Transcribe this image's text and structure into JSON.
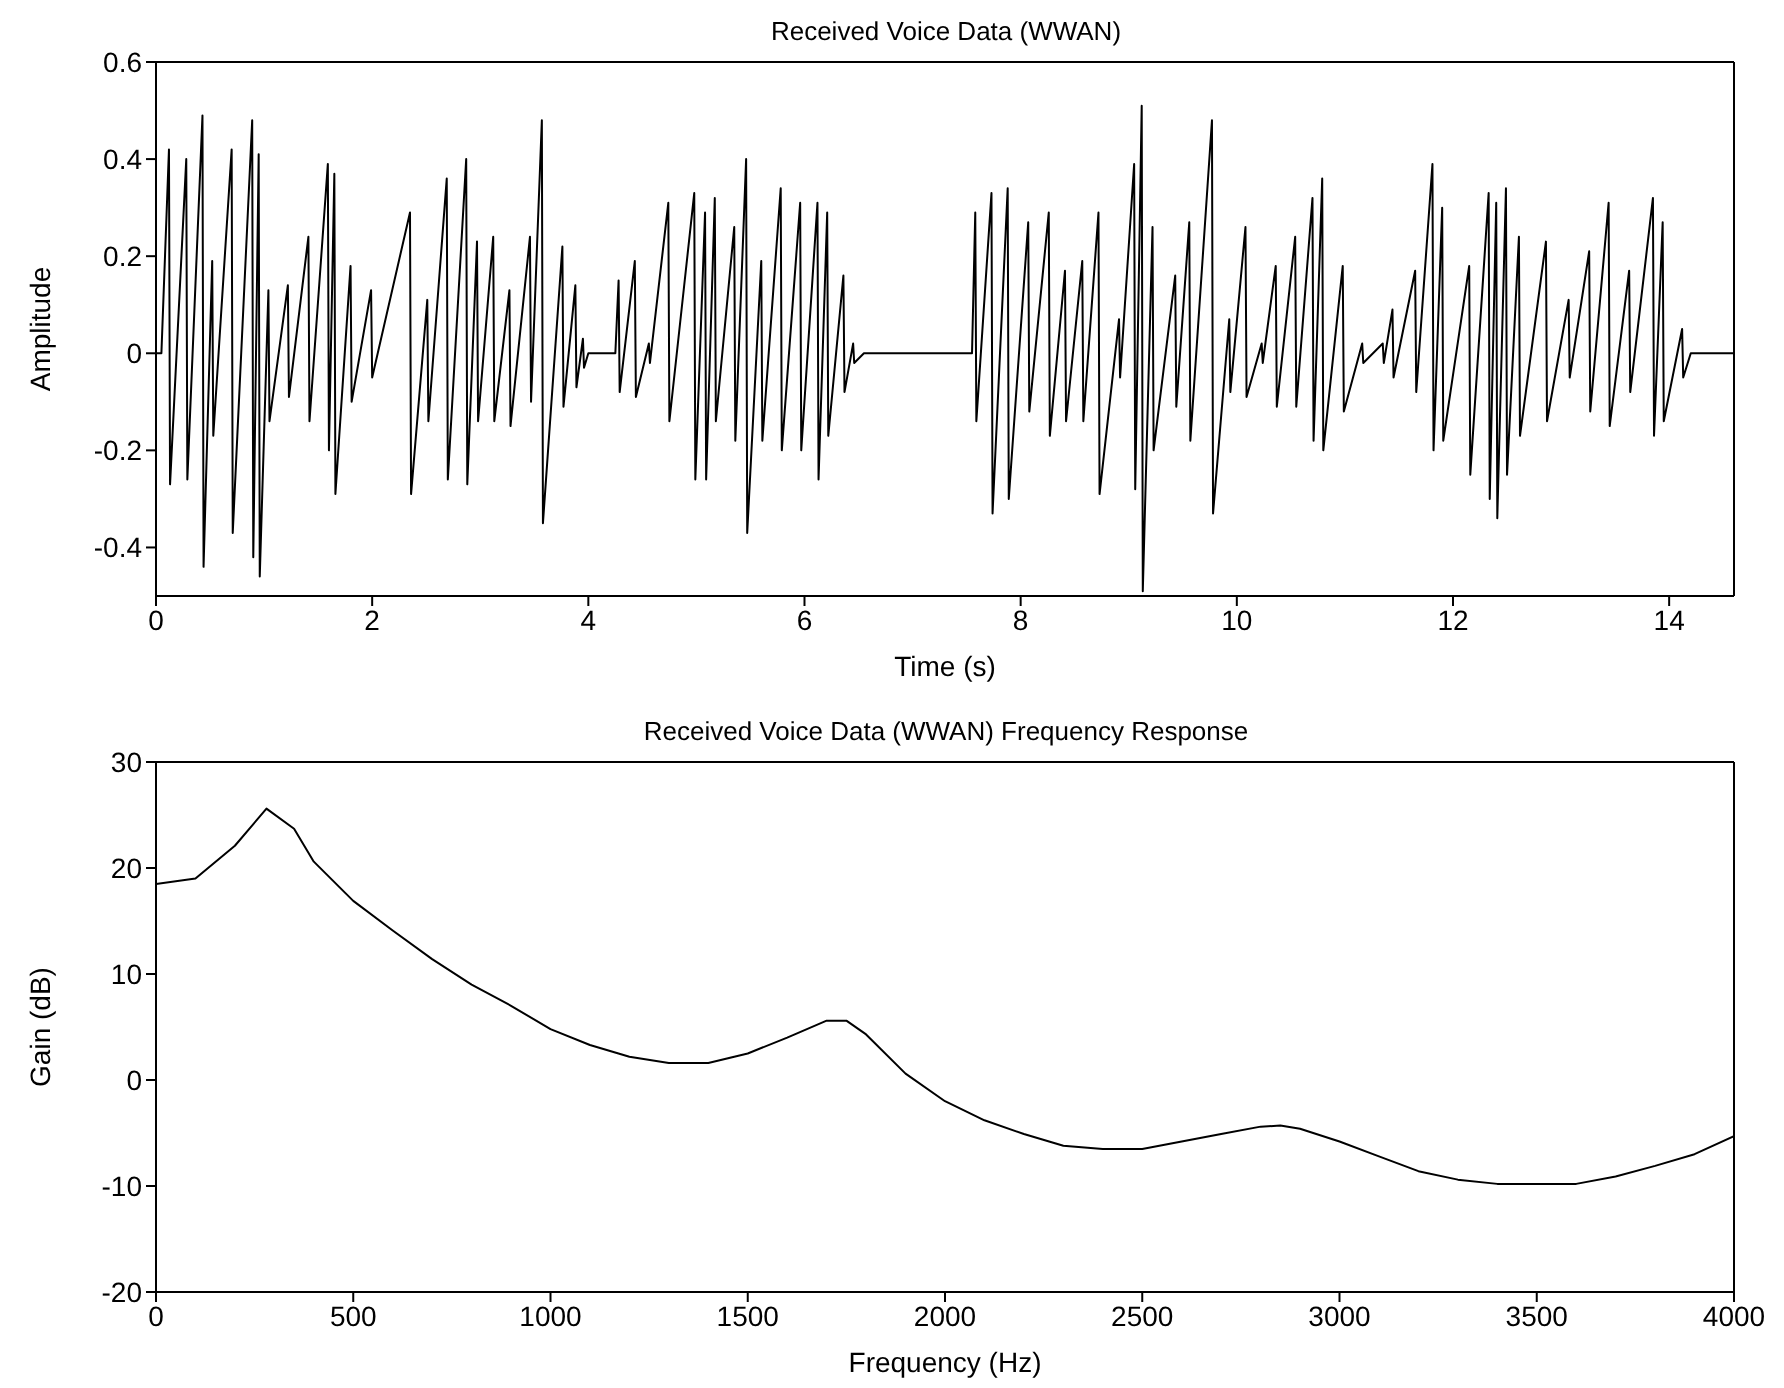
{
  "chart_data": [
    {
      "type": "line",
      "title": "Received Voice Data (WWAN)",
      "xlabel": "Time (s)",
      "ylabel": "Amplitude",
      "xlim": [
        0,
        14.6
      ],
      "xticks": [
        0,
        2,
        4,
        6,
        8,
        10,
        12,
        14
      ],
      "ylim": [
        -0.5,
        0.6
      ],
      "yticks": [
        -0.4,
        -0.2,
        0,
        0.2,
        0.4,
        0.6
      ],
      "grid": false,
      "legend": false,
      "marker": "none",
      "line_style": "solid",
      "x": [
        0,
        0.05,
        0.12,
        0.13,
        0.28,
        0.29,
        0.43,
        0.44,
        0.52,
        0.53,
        0.7,
        0.71,
        0.89,
        0.9,
        0.95,
        0.96,
        1.04,
        1.05,
        1.22,
        1.23,
        1.41,
        1.42,
        1.59,
        1.6,
        1.65,
        1.66,
        1.8,
        1.81,
        1.99,
        2.0,
        2.35,
        2.36,
        2.51,
        2.52,
        2.69,
        2.7,
        2.87,
        2.88,
        2.97,
        2.98,
        3.12,
        3.13,
        3.27,
        3.28,
        3.46,
        3.47,
        3.57,
        3.58,
        3.76,
        3.77,
        3.88,
        3.89,
        3.95,
        3.96,
        4.0,
        4.25,
        4.28,
        4.29,
        4.43,
        4.44,
        4.56,
        4.57,
        4.74,
        4.75,
        4.98,
        4.99,
        5.08,
        5.09,
        5.17,
        5.18,
        5.35,
        5.36,
        5.46,
        5.47,
        5.6,
        5.61,
        5.78,
        5.79,
        5.96,
        5.97,
        6.12,
        6.13,
        6.21,
        6.22,
        6.36,
        6.37,
        6.45,
        6.46,
        6.55,
        7.55,
        7.58,
        7.59,
        7.73,
        7.74,
        7.88,
        7.89,
        8.07,
        8.08,
        8.26,
        8.27,
        8.41,
        8.42,
        8.57,
        8.58,
        8.72,
        8.73,
        8.91,
        8.92,
        9.05,
        9.06,
        9.12,
        9.13,
        9.22,
        9.23,
        9.43,
        9.44,
        9.56,
        9.57,
        9.77,
        9.78,
        9.93,
        9.94,
        10.08,
        10.09,
        10.23,
        10.24,
        10.36,
        10.37,
        10.54,
        10.55,
        10.7,
        10.71,
        10.79,
        10.8,
        10.98,
        10.99,
        11.16,
        11.17,
        11.35,
        11.36,
        11.44,
        11.45,
        11.65,
        11.66,
        11.81,
        11.82,
        11.9,
        11.91,
        12.15,
        12.16,
        12.33,
        12.34,
        12.4,
        12.41,
        12.49,
        12.5,
        12.61,
        12.62,
        12.86,
        12.87,
        13.07,
        13.08,
        13.26,
        13.27,
        13.44,
        13.45,
        13.63,
        13.64,
        13.85,
        13.86,
        13.94,
        13.95,
        14.12,
        14.13,
        14.2,
        14.6
      ],
      "series": [
        {
          "color": "#000000",
          "values": [
            0,
            0,
            0.42,
            -0.27,
            0.4,
            -0.26,
            0.49,
            -0.44,
            0.19,
            -0.17,
            0.42,
            -0.37,
            0.48,
            -0.42,
            0.41,
            -0.46,
            0.13,
            -0.14,
            0.14,
            -0.09,
            0.24,
            -0.14,
            0.39,
            -0.2,
            0.37,
            -0.29,
            0.18,
            -0.1,
            0.13,
            -0.05,
            0.29,
            -0.29,
            0.11,
            -0.14,
            0.36,
            -0.26,
            0.4,
            -0.27,
            0.23,
            -0.14,
            0.24,
            -0.14,
            0.13,
            -0.15,
            0.24,
            -0.1,
            0.48,
            -0.35,
            0.22,
            -0.11,
            0.14,
            -0.07,
            0.03,
            -0.03,
            0,
            0,
            0.15,
            -0.08,
            0.19,
            -0.09,
            0.02,
            -0.02,
            0.31,
            -0.14,
            0.33,
            -0.26,
            0.29,
            -0.26,
            0.32,
            -0.14,
            0.26,
            -0.18,
            0.4,
            -0.37,
            0.19,
            -0.18,
            0.34,
            -0.2,
            0.31,
            -0.2,
            0.31,
            -0.26,
            0.29,
            -0.17,
            0.16,
            -0.08,
            0.02,
            -0.02,
            0,
            0,
            0.29,
            -0.14,
            0.33,
            -0.33,
            0.34,
            -0.3,
            0.27,
            -0.12,
            0.29,
            -0.17,
            0.17,
            -0.14,
            0.19,
            -0.14,
            0.29,
            -0.29,
            0.07,
            -0.05,
            0.39,
            -0.28,
            0.51,
            -0.49,
            0.26,
            -0.2,
            0.16,
            -0.11,
            0.27,
            -0.18,
            0.48,
            -0.33,
            0.07,
            -0.08,
            0.26,
            -0.09,
            0.02,
            -0.02,
            0.18,
            -0.11,
            0.24,
            -0.11,
            0.32,
            -0.18,
            0.36,
            -0.2,
            0.18,
            -0.12,
            0.02,
            -0.02,
            0.02,
            -0.02,
            0.09,
            -0.05,
            0.17,
            -0.08,
            0.39,
            -0.2,
            0.3,
            -0.18,
            0.18,
            -0.25,
            0.33,
            -0.3,
            0.31,
            -0.34,
            0.34,
            -0.25,
            0.24,
            -0.17,
            0.23,
            -0.14,
            0.11,
            -0.05,
            0.21,
            -0.12,
            0.31,
            -0.15,
            0.17,
            -0.08,
            0.32,
            -0.17,
            0.27,
            -0.14,
            0.05,
            -0.05,
            0,
            0
          ]
        }
      ]
    },
    {
      "type": "line",
      "title": "Received Voice Data (WWAN) Frequency Response",
      "xlabel": "Frequency (Hz)",
      "ylabel": "Gain (dB)",
      "xlim": [
        0,
        4000
      ],
      "xticks": [
        0,
        500,
        1000,
        1500,
        2000,
        2500,
        3000,
        3500,
        4000
      ],
      "ylim": [
        -20,
        30
      ],
      "yticks": [
        -20,
        -10,
        0,
        10,
        20,
        30
      ],
      "grid": false,
      "legend": false,
      "marker": "none",
      "line_style": "solid",
      "x": [
        0,
        100,
        200,
        280,
        350,
        400,
        500,
        600,
        700,
        800,
        900,
        1000,
        1100,
        1200,
        1300,
        1400,
        1500,
        1600,
        1700,
        1750,
        1800,
        1900,
        2000,
        2100,
        2200,
        2300,
        2400,
        2500,
        2600,
        2700,
        2800,
        2850,
        2900,
        3000,
        3100,
        3200,
        3300,
        3400,
        3500,
        3600,
        3700,
        3800,
        3900,
        4000
      ],
      "series": [
        {
          "color": "#000000",
          "values": [
            18.5,
            19,
            22.1,
            25.6,
            23.7,
            20.6,
            16.9,
            14.1,
            11.4,
            9.0,
            7.0,
            4.8,
            3.3,
            2.2,
            1.6,
            1.6,
            2.5,
            4.0,
            5.6,
            5.6,
            4.3,
            0.6,
            -2.0,
            -3.8,
            -5.1,
            -6.2,
            -6.5,
            -6.5,
            -5.8,
            -5.1,
            -4.4,
            -4.3,
            -4.6,
            -5.8,
            -7.2,
            -8.6,
            -9.4,
            -9.8,
            -9.8,
            -9.8,
            -9.1,
            -8.1,
            -7.0,
            -5.3
          ]
        }
      ]
    }
  ]
}
